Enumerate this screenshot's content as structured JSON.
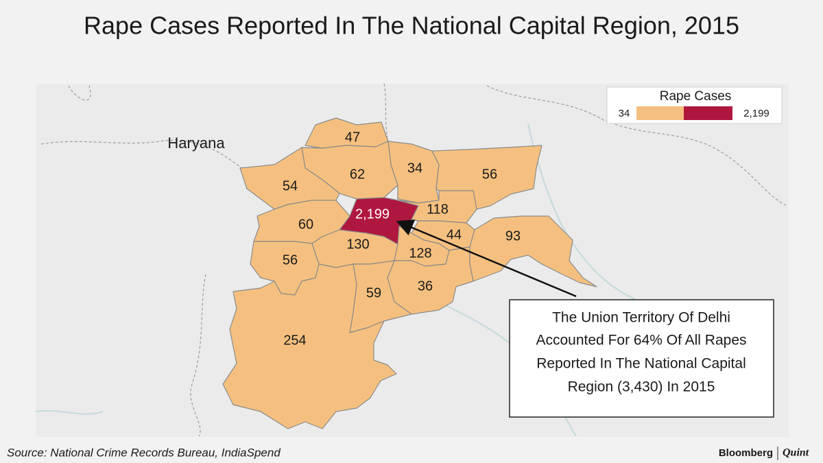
{
  "title": "Rape Cases Reported In The National Capital Region, 2015",
  "map": {
    "type": "choropleth",
    "state_label": "Haryana",
    "legend": {
      "title": "Rape Cases",
      "ticks": [
        34,
        {
          "value": 2199,
          "label": "2,199"
        }
      ],
      "colors": [
        "#f5c07f",
        "#b0173e"
      ]
    },
    "regions": {
      "values": [
        47,
        62,
        34,
        56,
        54,
        2199,
        118,
        60,
        130,
        44,
        93,
        56,
        128,
        36,
        59,
        254
      ],
      "value_labels": [
        "47",
        "62",
        "34",
        "56",
        "54",
        "2,199",
        "118",
        "60",
        "130",
        "44",
        "93",
        "56",
        "128",
        "36",
        "59",
        "254"
      ]
    }
  },
  "annotation": [
    "The Union Territory Of Delhi",
    "Accounted For 64% Of All Rapes",
    "Reported In The National Capital",
    "Region (3,430) In 2015"
  ],
  "source": "Source: National Crime Records Bureau, IndiaSpend",
  "brand": [
    "Bloomberg",
    "Quint"
  ]
}
